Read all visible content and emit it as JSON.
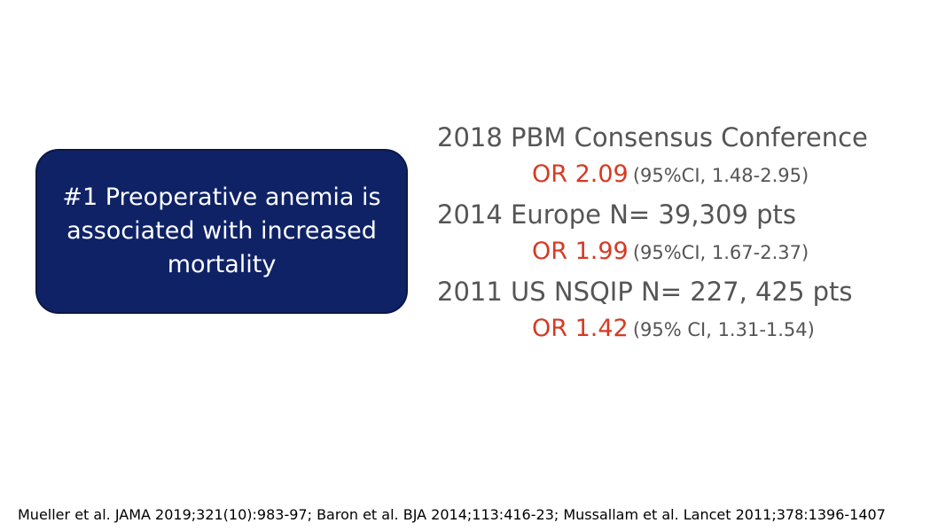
{
  "callout": {
    "text": "#1 Preoperative anemia is associated with increased mortality"
  },
  "studies": [
    {
      "heading": "2018 PBM Consensus Conference",
      "or": "OR 2.09",
      "ci": "(95%CI, 1.48-2.95)"
    },
    {
      "heading": "2014 Europe N= 39,309 pts",
      "or": "OR 1.99",
      "ci": "(95%CI, 1.67-2.37)"
    },
    {
      "heading": "2011 US NSQIP N= 227, 425 pts",
      "or": "OR 1.42",
      "ci": "(95% CI, 1.31-1.54)"
    }
  ],
  "footer": {
    "references": "Mueller et al. JAMA 2019;321(10):983-97; Baron et al. BJA 2014;113:416-23; Mussallam et al. Lancet 2011;378:1396-1407"
  }
}
